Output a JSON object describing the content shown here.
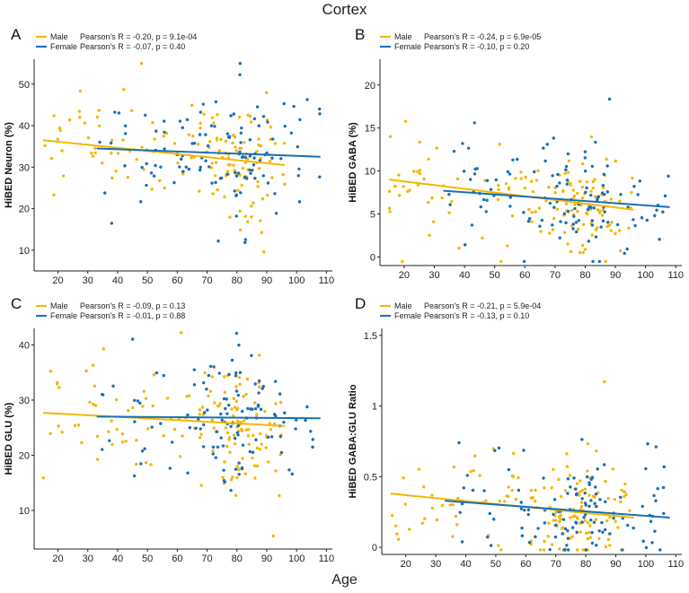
{
  "figure": {
    "title": "Cortex",
    "xlabel": "Age"
  },
  "colors": {
    "male": "#f2b705",
    "female": "#1a6fb5"
  },
  "chart_data": [
    {
      "type": "scatter",
      "panel": "A",
      "ylabel": "HiBED Neuron (%)",
      "xlim": [
        12,
        112
      ],
      "ylim": [
        5,
        56
      ],
      "xticks": [
        20,
        30,
        40,
        50,
        60,
        70,
        80,
        90,
        100,
        110
      ],
      "yticks": [
        10,
        20,
        30,
        40,
        50
      ],
      "legend": [
        {
          "name": "Male",
          "stat": "Pearson's R = -0.20, p = 9.1e-04"
        },
        {
          "name": "Female",
          "stat": "Pearson's R = -0.07, p = 0.40"
        }
      ],
      "series": [
        {
          "name": "Male",
          "x_range": [
            15,
            96
          ],
          "fit": {
            "x": [
              15,
              96
            ],
            "y": [
              36.5,
              30.5
            ]
          }
        },
        {
          "name": "Female",
          "x_range": [
            33,
            108
          ],
          "fit": {
            "x": [
              33,
              108
            ],
            "y": [
              34.5,
              32.5
            ]
          }
        }
      ]
    },
    {
      "type": "scatter",
      "panel": "B",
      "ylabel": "HiBED GABA (%)",
      "xlim": [
        12,
        112
      ],
      "ylim": [
        -1,
        23
      ],
      "xticks": [
        20,
        30,
        40,
        50,
        60,
        70,
        80,
        90,
        100,
        110
      ],
      "yticks": [
        0,
        5,
        10,
        15,
        20
      ],
      "legend": [
        {
          "name": "Male",
          "stat": "Pearson's R = -0.24, p = 6.9e-05"
        },
        {
          "name": "Female",
          "stat": "Pearson's R = -0.10, p = 0.20"
        }
      ],
      "series": [
        {
          "name": "Male",
          "x_range": [
            15,
            96
          ],
          "fit": {
            "x": [
              15,
              96
            ],
            "y": [
              9.0,
              5.5
            ]
          }
        },
        {
          "name": "Female",
          "x_range": [
            33,
            108
          ],
          "fit": {
            "x": [
              33,
              108
            ],
            "y": [
              7.7,
              5.8
            ]
          }
        }
      ]
    },
    {
      "type": "scatter",
      "panel": "C",
      "ylabel": "HiBED GLU (%)",
      "xlim": [
        12,
        112
      ],
      "ylim": [
        3,
        43
      ],
      "xticks": [
        20,
        30,
        40,
        50,
        60,
        70,
        80,
        90,
        100,
        110
      ],
      "yticks": [
        10,
        20,
        30,
        40
      ],
      "legend": [
        {
          "name": "Male",
          "stat": "Pearson's R = -0.09, p = 0.13"
        },
        {
          "name": "Female",
          "stat": "Pearson's R = -0.01, p = 0.88"
        }
      ],
      "series": [
        {
          "name": "Male",
          "x_range": [
            15,
            96
          ],
          "fit": {
            "x": [
              15,
              96
            ],
            "y": [
              27.7,
              25.3
            ]
          }
        },
        {
          "name": "Female",
          "x_range": [
            33,
            108
          ],
          "fit": {
            "x": [
              33,
              108
            ],
            "y": [
              27.0,
              26.7
            ]
          }
        }
      ]
    },
    {
      "type": "scatter",
      "panel": "D",
      "ylabel": "HiBED GABA:GLU Ratio",
      "xlim": [
        12,
        112
      ],
      "ylim": [
        -0.05,
        1.55
      ],
      "xticks": [
        20,
        30,
        40,
        50,
        60,
        70,
        80,
        90,
        100,
        110
      ],
      "yticks": [
        0.0,
        0.5,
        1.0,
        1.5
      ],
      "legend": [
        {
          "name": "Male",
          "stat": "Pearson's R = -0.21, p = 5.9e-04"
        },
        {
          "name": "Female",
          "stat": "Pearson's R = -0.13, p = 0.10"
        }
      ],
      "series": [
        {
          "name": "Male",
          "x_range": [
            15,
            96
          ],
          "fit": {
            "x": [
              15,
              96
            ],
            "y": [
              0.38,
              0.21
            ]
          }
        },
        {
          "name": "Female",
          "x_range": [
            33,
            108
          ],
          "fit": {
            "x": [
              33,
              108
            ],
            "y": [
              0.33,
              0.21
            ]
          }
        }
      ]
    }
  ]
}
